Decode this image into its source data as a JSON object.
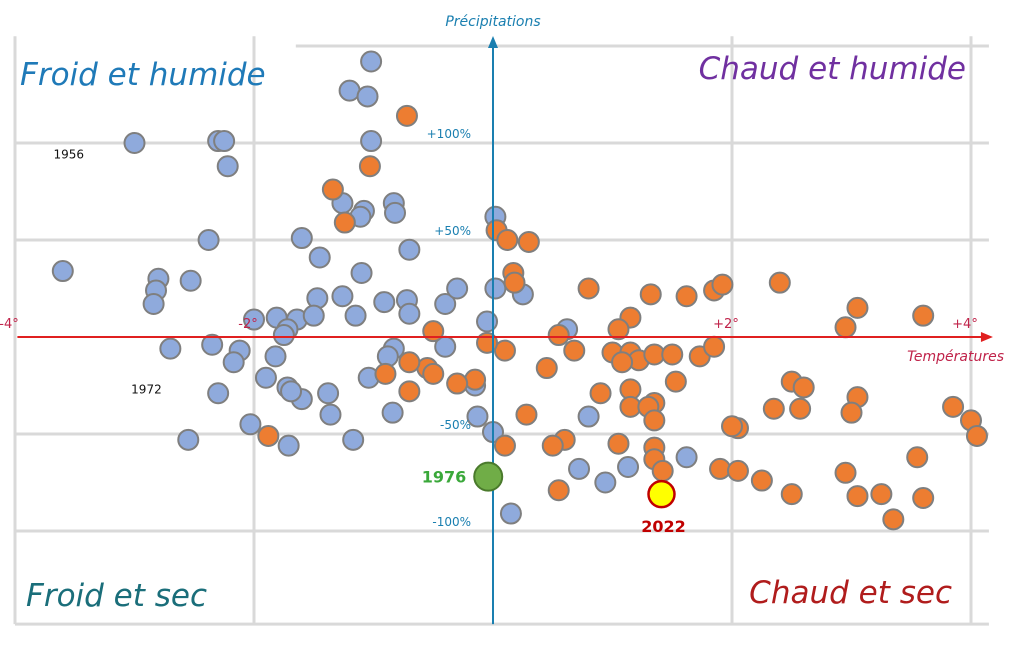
{
  "chart_data": {
    "type": "scatter",
    "xlabel": "Températures",
    "ylabel": "Précipitations",
    "xlim": [
      -4.1,
      4.1
    ],
    "ylim": [
      -135,
      155
    ],
    "x_ticks": [
      {
        "x": -4,
        "label": "-4°"
      },
      {
        "x": -2,
        "label": "-2°"
      },
      {
        "x": 2,
        "label": "+2°"
      },
      {
        "x": 4,
        "label": "+4°"
      }
    ],
    "y_ticks": [
      {
        "y": 100,
        "label": "+100%"
      },
      {
        "y": 50,
        "label": "+50%"
      },
      {
        "y": -50,
        "label": "-50%"
      },
      {
        "y": -100,
        "label": "-100%"
      }
    ],
    "gridlines_x": [
      -4,
      -2,
      0,
      2,
      4
    ],
    "gridlines_y": [
      -100,
      -50,
      0,
      50,
      100,
      150
    ],
    "quadrants": {
      "top_left": "Froid et humide",
      "top_right": "Chaud et humide",
      "bottom_left": "Froid et sec",
      "bottom_right": "Chaud et sec"
    },
    "colors": {
      "cold": "#8faadc",
      "warm": "#ed7d31",
      "marker_edge": "#7f7f7f",
      "x_axis": "#e02020",
      "y_axis": "#1a7fb0",
      "grid": "#d9d9d9",
      "q_top_left": "#1f7ab8",
      "q_top_right": "#7030a0",
      "q_bottom_left": "#1a6e7a",
      "q_bottom_right": "#b01c1c",
      "label_1976": "#3aa83a",
      "point_1976": "#70ad47",
      "label_2022": "#c00000",
      "point_2022": "#ffff00"
    },
    "year_labels": [
      {
        "x": -3.55,
        "y": 92,
        "text": "1956"
      },
      {
        "x": -2.9,
        "y": -29,
        "text": "1972"
      }
    ],
    "series": [
      {
        "values": [
          [
            -1.02,
            142
          ],
          [
            -1.2,
            127
          ],
          [
            -1.05,
            124
          ],
          [
            -3.0,
            100
          ],
          [
            -2.3,
            101
          ],
          [
            -2.25,
            101
          ],
          [
            -1.02,
            101
          ],
          [
            -2.22,
            88
          ],
          [
            -1.26,
            69
          ],
          [
            -1.08,
            65
          ],
          [
            -0.83,
            69
          ],
          [
            -0.82,
            64
          ],
          [
            -1.11,
            62
          ],
          [
            -2.38,
            50
          ],
          [
            -1.6,
            51
          ],
          [
            -1.45,
            41
          ],
          [
            -0.7,
            45
          ],
          [
            -3.6,
            34
          ],
          [
            -2.8,
            30
          ],
          [
            -2.82,
            24
          ],
          [
            -2.53,
            29
          ],
          [
            -2.84,
            17
          ],
          [
            -1.1,
            33
          ],
          [
            -1.47,
            20
          ],
          [
            -1.26,
            21
          ],
          [
            -0.91,
            18
          ],
          [
            -0.72,
            19
          ],
          [
            -0.4,
            17
          ],
          [
            -0.3,
            25
          ],
          [
            -0.7,
            12
          ],
          [
            -1.15,
            11
          ],
          [
            -2.0,
            9
          ],
          [
            -1.64,
            9
          ],
          [
            -1.81,
            10
          ],
          [
            -1.72,
            4
          ],
          [
            -1.5,
            11
          ],
          [
            -1.75,
            1
          ],
          [
            -0.05,
            8
          ],
          [
            -2.7,
            -6
          ],
          [
            -2.35,
            -4
          ],
          [
            -2.12,
            -7
          ],
          [
            -1.82,
            -10
          ],
          [
            -2.17,
            -13
          ],
          [
            -0.83,
            -6
          ],
          [
            -0.88,
            -10
          ],
          [
            -0.4,
            -5
          ],
          [
            -2.3,
            -29
          ],
          [
            -1.6,
            -32
          ],
          [
            -1.9,
            -21
          ],
          [
            -1.72,
            -26
          ],
          [
            -1.38,
            -29
          ],
          [
            -1.04,
            -21
          ],
          [
            -1.69,
            -28
          ],
          [
            -1.36,
            -40
          ],
          [
            -0.84,
            -39
          ],
          [
            -2.03,
            -45
          ],
          [
            -2.55,
            -53
          ],
          [
            -1.71,
            -56
          ],
          [
            -1.17,
            -53
          ],
          [
            -0.15,
            -25
          ],
          [
            -0.13,
            -41
          ],
          [
            0.0,
            -49
          ],
          [
            0.02,
            62
          ],
          [
            0.02,
            25
          ],
          [
            0.25,
            22
          ],
          [
            0.62,
            4
          ],
          [
            0.8,
            -41
          ],
          [
            0.72,
            -68
          ],
          [
            0.15,
            -91
          ],
          [
            0.94,
            -75
          ],
          [
            1.13,
            -67
          ],
          [
            1.62,
            -62
          ]
        ]
      },
      {
        "values": [
          [
            -0.72,
            114
          ],
          [
            -1.03,
            88
          ],
          [
            -1.34,
            76
          ],
          [
            -1.24,
            59
          ],
          [
            0.03,
            55
          ],
          [
            0.12,
            50
          ],
          [
            0.3,
            49
          ],
          [
            0.17,
            33
          ],
          [
            0.18,
            28
          ],
          [
            0.8,
            25
          ],
          [
            1.32,
            22
          ],
          [
            1.62,
            21
          ],
          [
            1.85,
            24
          ],
          [
            1.92,
            27
          ],
          [
            2.4,
            28
          ],
          [
            3.05,
            15
          ],
          [
            3.6,
            11
          ],
          [
            2.95,
            5
          ],
          [
            1.15,
            10
          ],
          [
            1.05,
            4
          ],
          [
            0.55,
            1
          ],
          [
            0.1,
            -7
          ],
          [
            0.68,
            -7
          ],
          [
            1.0,
            -8
          ],
          [
            1.15,
            -8
          ],
          [
            1.22,
            -12
          ],
          [
            1.35,
            -9
          ],
          [
            1.5,
            -9
          ],
          [
            1.73,
            -10
          ],
          [
            1.85,
            -5
          ],
          [
            0.45,
            -16
          ],
          [
            1.08,
            -13
          ],
          [
            -0.55,
            -16
          ],
          [
            -0.7,
            -13
          ],
          [
            -0.9,
            -19
          ],
          [
            -0.5,
            3
          ],
          [
            -0.05,
            -3
          ],
          [
            -0.15,
            -22
          ],
          [
            -0.5,
            -19
          ],
          [
            -0.3,
            -24
          ],
          [
            1.15,
            -27
          ],
          [
            1.53,
            -23
          ],
          [
            0.9,
            -29
          ],
          [
            1.35,
            -34
          ],
          [
            1.15,
            -36
          ],
          [
            1.3,
            -36
          ],
          [
            2.5,
            -23
          ],
          [
            2.6,
            -26
          ],
          [
            2.35,
            -37
          ],
          [
            2.57,
            -37
          ],
          [
            3.05,
            -31
          ],
          [
            3.0,
            -39
          ],
          [
            3.85,
            -36
          ],
          [
            1.35,
            -43
          ],
          [
            2.05,
            -47
          ],
          [
            2.0,
            -46
          ],
          [
            -1.88,
            -51
          ],
          [
            -0.7,
            -28
          ],
          [
            0.1,
            -56
          ],
          [
            0.28,
            -40
          ],
          [
            0.6,
            -53
          ],
          [
            1.05,
            -55
          ],
          [
            1.35,
            -57
          ],
          [
            1.35,
            -63
          ],
          [
            3.55,
            -62
          ],
          [
            1.9,
            -68
          ],
          [
            2.05,
            -69
          ],
          [
            1.42,
            -69
          ],
          [
            2.25,
            -74
          ],
          [
            2.95,
            -70
          ],
          [
            2.5,
            -81
          ],
          [
            3.05,
            -82
          ],
          [
            3.25,
            -81
          ],
          [
            3.6,
            -83
          ],
          [
            3.35,
            -94
          ],
          [
            4.0,
            -43
          ],
          [
            4.05,
            -51
          ],
          [
            0.5,
            -56
          ],
          [
            0.55,
            -79
          ]
        ]
      }
    ],
    "highlights": [
      {
        "label": "1976",
        "x": -0.04,
        "y": -72
      },
      {
        "label": "2022",
        "x": 1.41,
        "y": -81
      }
    ]
  }
}
